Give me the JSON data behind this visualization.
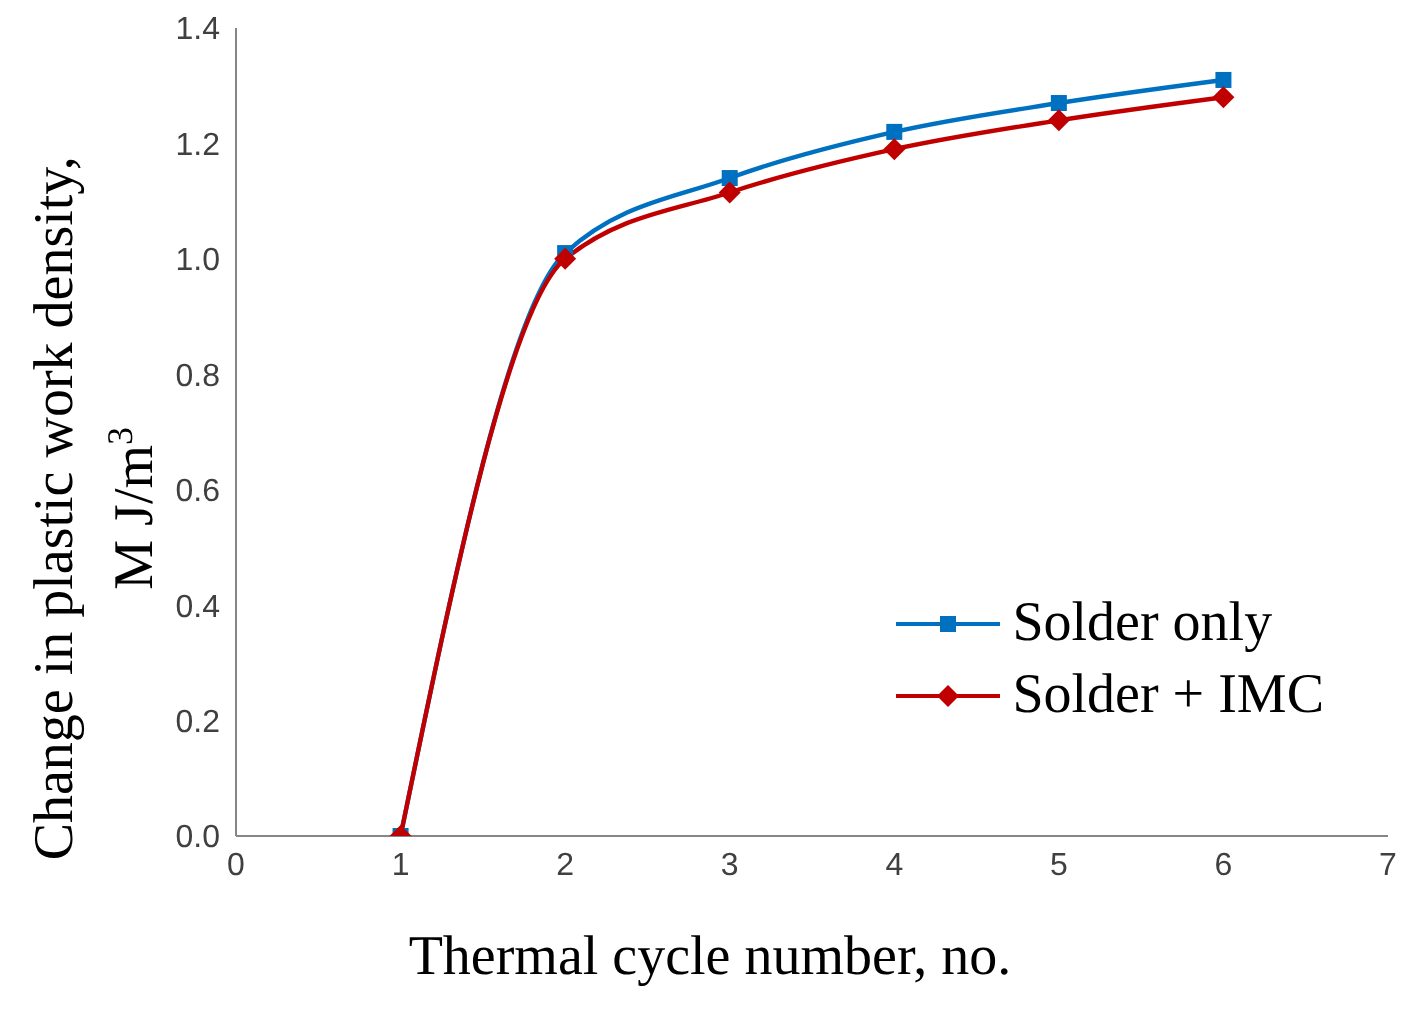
{
  "chart_data": {
    "type": "line",
    "xlabel": "Thermal cycle number, no.",
    "ylabel": "Change in plastic work density, M J/m$^{3}$",
    "x": [
      1,
      2,
      3,
      4,
      5,
      6
    ],
    "series": [
      {
        "name": "Solder only",
        "color": "#0070c0",
        "marker": "square",
        "values": [
          0,
          1.01,
          1.14,
          1.22,
          1.27,
          1.31
        ]
      },
      {
        "name": "Solder + IMC",
        "color": "#c00000",
        "marker": "diamond",
        "values": [
          0,
          1.0,
          1.115,
          1.19,
          1.24,
          1.28
        ]
      }
    ],
    "xlim": [
      0,
      7
    ],
    "xticks": [
      0,
      1,
      2,
      3,
      4,
      5,
      6,
      7
    ],
    "ylim": [
      0,
      1.4
    ],
    "yticks": [
      {
        "value": 0,
        "label": "0.0"
      },
      0.2,
      0.4,
      0.6,
      0.8,
      {
        "value": 1,
        "label": "1.0"
      },
      1.2,
      1.4
    ],
    "legend": "right"
  }
}
